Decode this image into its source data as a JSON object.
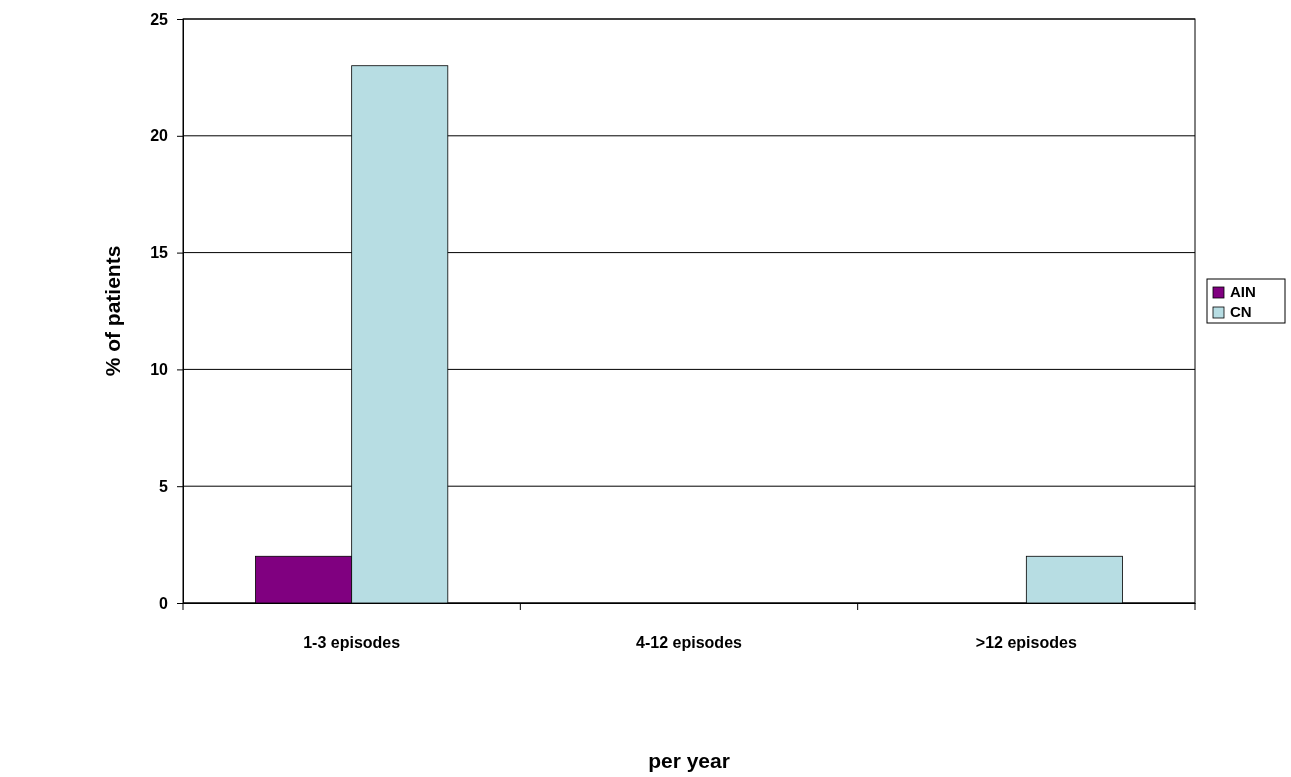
{
  "chart_data": {
    "type": "bar",
    "xlabel": "per year",
    "ylabel": "% of patients",
    "categories": [
      "1-3 episodes",
      "4-12 episodes",
      ">12 episodes"
    ],
    "series": [
      {
        "name": "AIN",
        "color": "#800080",
        "values": [
          2,
          0,
          0
        ]
      },
      {
        "name": "CN",
        "color": "#b7dde3",
        "values": [
          23,
          0,
          2
        ]
      }
    ],
    "ylim": [
      0,
      25
    ],
    "yticks": [
      0,
      5,
      10,
      15,
      20,
      25
    ],
    "grid": "y",
    "legend": "right"
  }
}
